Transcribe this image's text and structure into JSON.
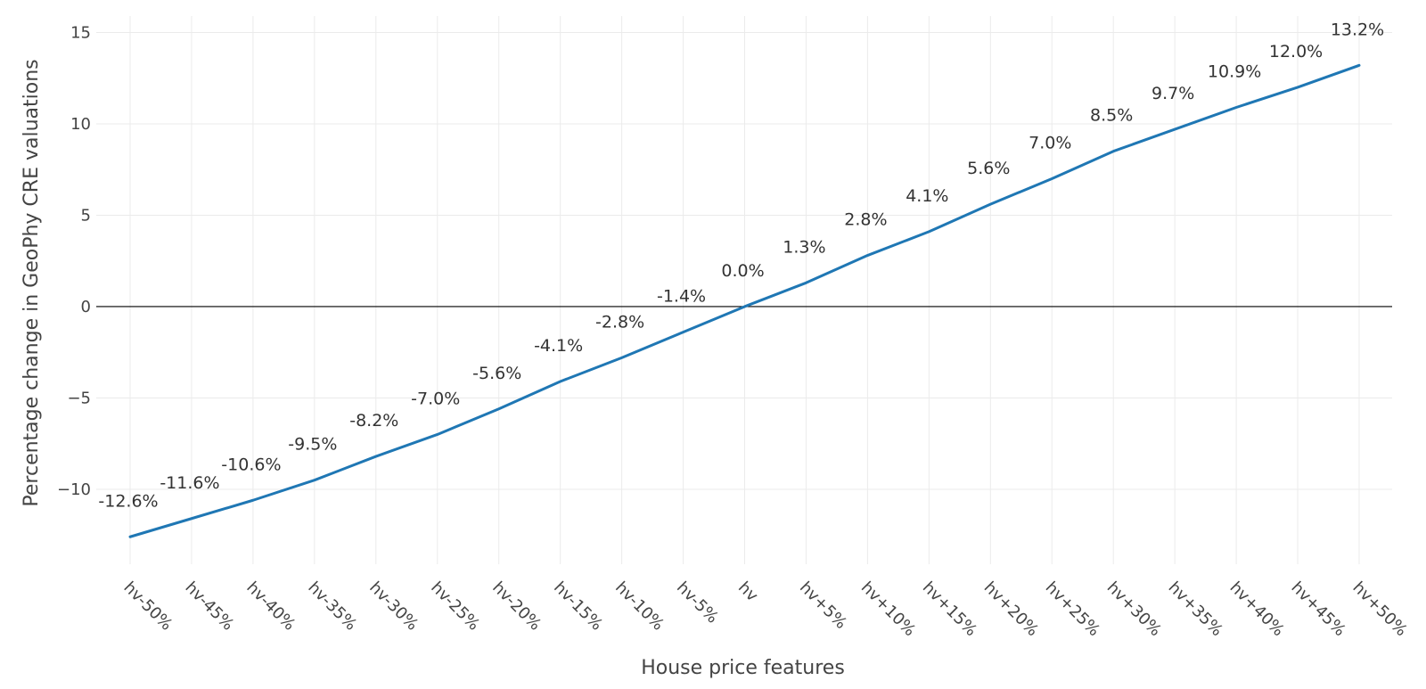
{
  "chart_data": {
    "type": "line",
    "title": "",
    "xlabel": "House price features",
    "ylabel": "Percentage change in GeoPhy CRE valuations",
    "categories": [
      "hv-50%",
      "hv-45%",
      "hv-40%",
      "hv-35%",
      "hv-30%",
      "hv-25%",
      "hv-20%",
      "hv-15%",
      "hv-10%",
      "hv-5%",
      "hv",
      "hv+5%",
      "hv+10%",
      "hv+15%",
      "hv+20%",
      "hv+25%",
      "hv+30%",
      "hv+35%",
      "hv+40%",
      "hv+45%",
      "hv+50%"
    ],
    "series": [
      {
        "values": [
          -12.6,
          -11.6,
          -10.6,
          -9.5,
          -8.2,
          -7.0,
          -5.6,
          -4.1,
          -2.8,
          -1.4,
          0.0,
          1.3,
          2.8,
          4.1,
          5.6,
          7.0,
          8.5,
          9.7,
          10.9,
          12.0,
          13.2
        ],
        "data_labels": [
          "-12.6%",
          "-11.6%",
          "-10.6%",
          "-9.5%",
          "-8.2%",
          "-7.0%",
          "-5.6%",
          "-4.1%",
          "-2.8%",
          "-1.4%",
          "0.0%",
          "1.3%",
          "2.8%",
          "4.1%",
          "5.6%",
          "7.0%",
          "8.5%",
          "9.7%",
          "10.9%",
          "12.0%",
          "13.2%"
        ],
        "color": "#1f77b4"
      }
    ],
    "yticks": [
      15,
      10,
      5,
      0,
      -5,
      -10
    ],
    "ytick_labels": [
      "15",
      "10",
      "5",
      "0",
      "−5",
      "−10"
    ],
    "ylim": [
      -14.1,
      15.9
    ],
    "grid": true,
    "zero_line": true
  }
}
